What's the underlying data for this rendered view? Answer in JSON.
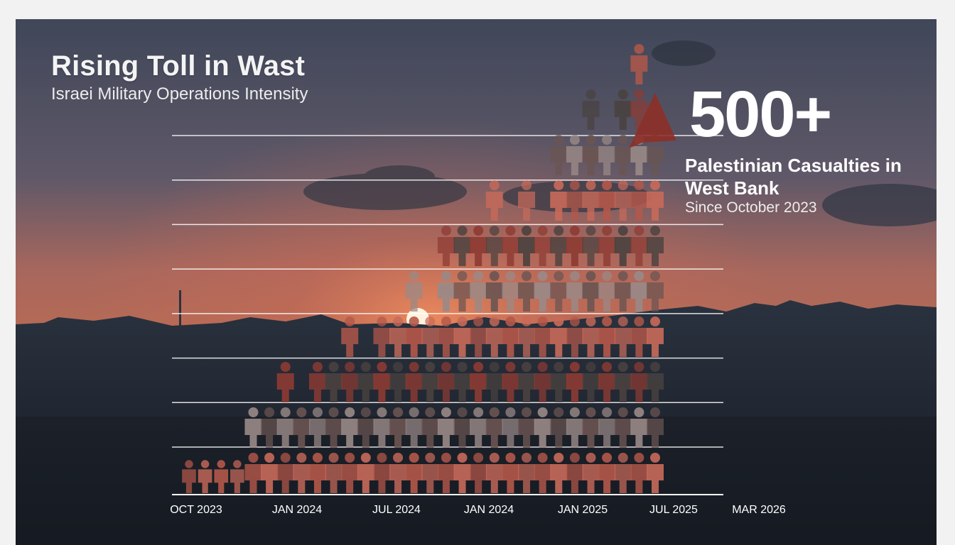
{
  "header": {
    "title": "Rising Toll in Wast",
    "subtitle": "Israei Military Operations Intensity"
  },
  "callout": {
    "number": "500+",
    "label": "Palestinian Casualties in West Bank",
    "sublabel": "Since October 2023"
  },
  "colors": {
    "sky_top": "#454d61",
    "sky_glow": "#c76a4f",
    "ground": "#27303d",
    "icon_red": "#b5584a",
    "icon_dark": "#4a4240",
    "icon_grey": "#9a8a88",
    "arrow": "#8e2f28"
  },
  "chart_data": {
    "type": "bar",
    "style": "pictogram",
    "categories": [
      "OCT 2023",
      "JAN 2024",
      "JUL 2024",
      "JAN 2024",
      "JAN 2025",
      "JUL 2025",
      "MAR 2026"
    ],
    "columns": [
      1,
      1,
      1,
      1,
      2,
      2,
      3,
      2,
      3,
      3,
      4,
      3,
      4,
      4,
      5,
      4,
      6,
      6,
      6,
      7,
      6,
      7,
      6,
      8,
      8,
      9,
      8,
      9,
      10,
      8
    ],
    "x_range": [
      0,
      6
    ],
    "gridlines": 8,
    "trend": "rising",
    "annotation": "500+"
  }
}
